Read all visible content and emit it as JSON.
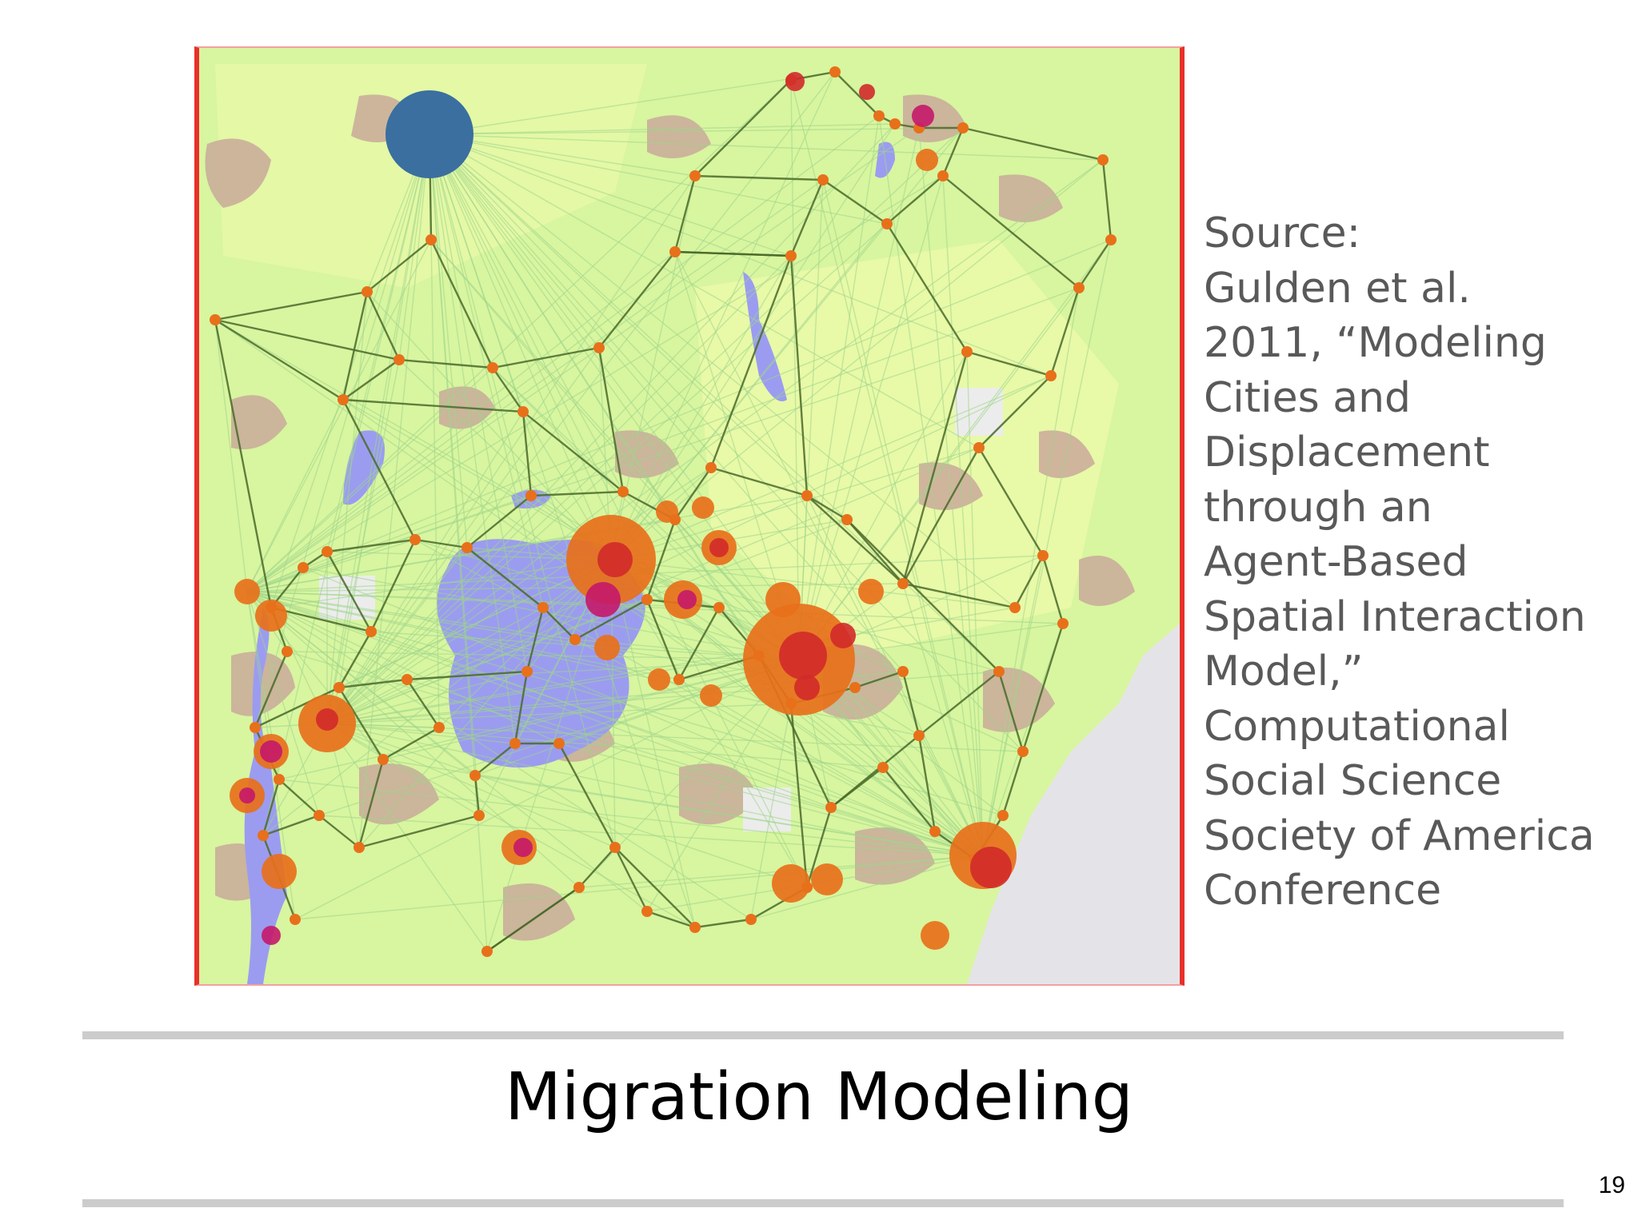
{
  "slide": {
    "title": "Migration Modeling",
    "page_number": "19"
  },
  "source": {
    "lines": [
      "Source:",
      "Gulden et al.",
      "2011, “Modeling",
      "Cities and",
      "Displacement",
      "through an",
      "Agent-Based",
      "Spatial Interaction",
      "Model,”",
      "Computational",
      "Social Science",
      "Society of America",
      "Conference"
    ]
  },
  "map": {
    "colors": {
      "land": "#d8f5a0",
      "land_light": "#eaf9a8",
      "urban": "#c9a99a",
      "water": "#9b9cf0",
      "sea": "#e4e4e8",
      "network_edge": "#4a6a2a",
      "flow_line": "#9ed68a",
      "node": "#e8701a",
      "node_core": "#d22a2a",
      "camp": "#c4186a",
      "capital_node": "#3a6fa0",
      "frame_border": "#e8302a"
    },
    "legend_visible": false
  }
}
